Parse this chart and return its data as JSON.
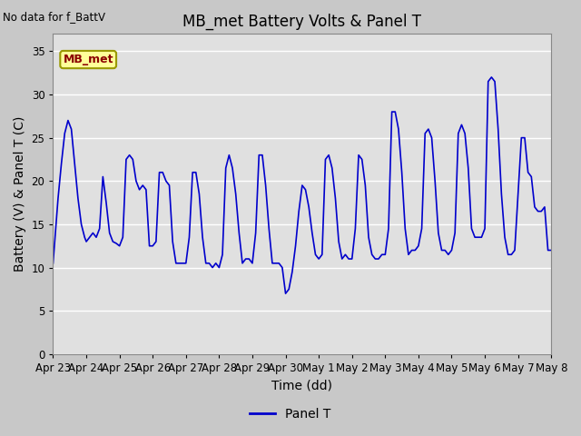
{
  "title": "MB_met Battery Volts & Panel T",
  "no_data_text": "No data for f_BattV",
  "ylabel": "Battery (V) & Panel T (C)",
  "xlabel": "Time (dd)",
  "legend_label": "Panel T",
  "line_color": "#0000cc",
  "fig_facecolor": "#c8c8c8",
  "plot_facecolor": "#e0e0e0",
  "ylim": [
    0,
    37
  ],
  "yticks": [
    0,
    5,
    10,
    15,
    20,
    25,
    30,
    35
  ],
  "xlim": [
    0,
    15
  ],
  "annotation_text": "MB_met",
  "title_fontsize": 12,
  "label_fontsize": 10,
  "tick_fontsize": 8.5,
  "tick_labels": [
    "Apr 23",
    "Apr 24",
    "Apr 25",
    "Apr 26",
    "Apr 27",
    "Apr 28",
    "Apr 29",
    "Apr 30",
    "May 1",
    "May 2",
    "May 3",
    "May 4",
    "May 5",
    "May 6",
    "May 7",
    "May 8"
  ],
  "x_data": [
    0.0,
    0.05,
    0.15,
    0.25,
    0.35,
    0.45,
    0.55,
    0.65,
    0.75,
    0.85,
    0.95,
    1.0,
    1.1,
    1.2,
    1.3,
    1.4,
    1.5,
    1.6,
    1.7,
    1.8,
    1.9,
    2.0,
    2.1,
    2.2,
    2.3,
    2.4,
    2.5,
    2.6,
    2.7,
    2.8,
    2.9,
    3.0,
    3.1,
    3.2,
    3.3,
    3.4,
    3.5,
    3.6,
    3.7,
    3.8,
    3.9,
    4.0,
    4.1,
    4.2,
    4.3,
    4.4,
    4.5,
    4.6,
    4.7,
    4.8,
    4.9,
    5.0,
    5.1,
    5.2,
    5.3,
    5.4,
    5.5,
    5.6,
    5.7,
    5.8,
    5.9,
    6.0,
    6.1,
    6.2,
    6.3,
    6.4,
    6.5,
    6.6,
    6.7,
    6.8,
    6.9,
    7.0,
    7.1,
    7.2,
    7.3,
    7.4,
    7.5,
    7.6,
    7.7,
    7.8,
    7.9,
    8.0,
    8.1,
    8.2,
    8.3,
    8.4,
    8.5,
    8.6,
    8.7,
    8.8,
    8.9,
    9.0,
    9.1,
    9.2,
    9.3,
    9.4,
    9.5,
    9.6,
    9.7,
    9.8,
    9.9,
    10.0,
    10.1,
    10.2,
    10.3,
    10.4,
    10.5,
    10.6,
    10.7,
    10.8,
    10.9,
    11.0,
    11.1,
    11.2,
    11.3,
    11.4,
    11.5,
    11.6,
    11.7,
    11.8,
    11.9,
    12.0,
    12.1,
    12.2,
    12.3,
    12.4,
    12.5,
    12.6,
    12.7,
    12.8,
    12.9,
    13.0,
    13.1,
    13.2,
    13.3,
    13.4,
    13.5,
    13.6,
    13.7,
    13.8,
    13.9,
    14.0,
    14.1,
    14.2,
    14.3,
    14.4,
    14.5,
    14.6,
    14.7,
    14.8,
    14.9,
    15.0
  ],
  "y_data": [
    10.5,
    13.0,
    18.0,
    22.0,
    25.5,
    27.0,
    26.0,
    22.0,
    18.0,
    15.0,
    13.5,
    13.0,
    13.5,
    14.0,
    13.5,
    14.5,
    20.5,
    17.5,
    14.0,
    13.0,
    12.8,
    12.5,
    13.5,
    22.5,
    23.0,
    22.5,
    20.0,
    19.0,
    19.5,
    19.0,
    12.5,
    12.5,
    13.0,
    21.0,
    21.0,
    20.0,
    19.5,
    13.0,
    10.5,
    10.5,
    10.5,
    10.5,
    13.5,
    21.0,
    21.0,
    18.5,
    13.5,
    10.5,
    10.5,
    10.0,
    10.5,
    10.0,
    11.5,
    21.5,
    23.0,
    21.5,
    18.5,
    14.0,
    10.5,
    11.0,
    11.0,
    10.5,
    14.0,
    23.0,
    23.0,
    19.5,
    14.5,
    10.5,
    10.5,
    10.5,
    10.0,
    7.0,
    7.5,
    9.5,
    12.5,
    16.5,
    19.5,
    19.0,
    17.0,
    14.0,
    11.5,
    11.0,
    11.5,
    22.5,
    23.0,
    21.5,
    18.0,
    13.0,
    11.0,
    11.5,
    11.0,
    11.0,
    14.5,
    23.0,
    22.5,
    19.5,
    13.5,
    11.5,
    11.0,
    11.0,
    11.5,
    11.5,
    14.5,
    28.0,
    28.0,
    26.0,
    21.0,
    14.5,
    11.5,
    12.0,
    12.0,
    12.5,
    14.5,
    25.5,
    26.0,
    25.0,
    20.0,
    14.0,
    12.0,
    12.0,
    11.5,
    12.0,
    14.0,
    25.5,
    26.5,
    25.5,
    21.5,
    14.5,
    13.5,
    13.5,
    13.5,
    14.5,
    31.5,
    32.0,
    31.5,
    26.0,
    18.5,
    13.5,
    11.5,
    11.5,
    12.0,
    18.5,
    25.0,
    25.0,
    21.0,
    20.5,
    17.0,
    16.5,
    16.5,
    17.0,
    12.0,
    12.0
  ]
}
